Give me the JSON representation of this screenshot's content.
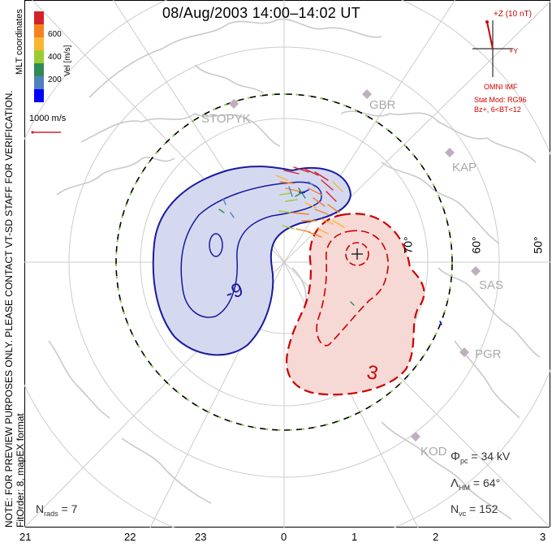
{
  "title": "08/Aug/2003 14:00–14:02 UT",
  "note": "NOTE: FOR PREVIEW PURPOSES ONLY. PLEASE CONTACT VT-SD STAFF FOR VERIFICATION.",
  "fit_order": "FitOrder: 8,  mapEX format",
  "coords": "MLT coordinates",
  "colorbar": {
    "label": "Vel [m/s]",
    "ticks": [
      "600",
      "400",
      "200"
    ],
    "colors": [
      "#d1232a",
      "#f58220",
      "#f7b731",
      "#9acd32",
      "#2e8b57",
      "#4f81bd",
      "#0000ff"
    ]
  },
  "scale": {
    "label": "1000 m/s"
  },
  "imf": {
    "z_label": "+Z (10 nT)",
    "y_label": "+Y",
    "source": "OMNI IMF",
    "model": "Stat Mod: RG96",
    "condition": "Bz+, 6<BT<12"
  },
  "stations": [
    "STOPYK",
    "GBR",
    "KAP",
    "SAS",
    "PGR",
    "KOD"
  ],
  "latitudes": [
    "70°",
    "60°",
    "50°"
  ],
  "contour_labels": [
    "-9",
    "3"
  ],
  "stats": {
    "phi_pc": "34 kV",
    "lambda_hm": "64°",
    "n_vc": "152",
    "n_rads": "7"
  },
  "mlt_ticks": [
    "21",
    "22",
    "23",
    "0",
    "1",
    "2",
    "3"
  ],
  "colors": {
    "positive": "#cc0000",
    "negative": "#00008b"
  }
}
